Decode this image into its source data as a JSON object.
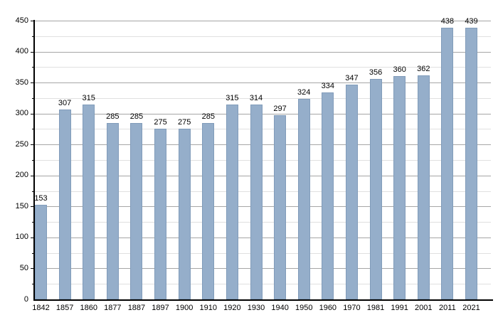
{
  "chart_data": {
    "type": "bar",
    "title": "",
    "xlabel": "",
    "ylabel": "",
    "categories": [
      "1842",
      "1857",
      "1860",
      "1877",
      "1887",
      "1897",
      "1900",
      "1910",
      "1920",
      "1930",
      "1940",
      "1950",
      "1960",
      "1970",
      "1981",
      "1991",
      "2001",
      "2011",
      "2021"
    ],
    "values": [
      153,
      307,
      315,
      285,
      285,
      275,
      275,
      285,
      315,
      314,
      297,
      324,
      334,
      347,
      356,
      360,
      362,
      438,
      439
    ],
    "bar_value_labels": [
      "153",
      "307",
      "315",
      "285",
      "285",
      "275",
      "275",
      "285",
      "315",
      "314",
      "297",
      "324",
      "334",
      "347",
      "356",
      "360",
      "362",
      "438",
      "439"
    ],
    "ylim": [
      0,
      450
    ],
    "ytick_labels": [
      "0",
      "50",
      "100",
      "150",
      "200",
      "250",
      "300",
      "350",
      "400",
      "450"
    ],
    "ytick_step": 50,
    "minor_gridline_step": 25,
    "grid": "horizontal",
    "legend": "none",
    "colors": {
      "bar_fill": "#95aeca",
      "bar_border": "#819cba",
      "grid_major": "#a6a6a6",
      "grid_minor": "#e0e0e0",
      "axis": "#000000",
      "text": "#000000",
      "background": "#ffffff"
    }
  }
}
